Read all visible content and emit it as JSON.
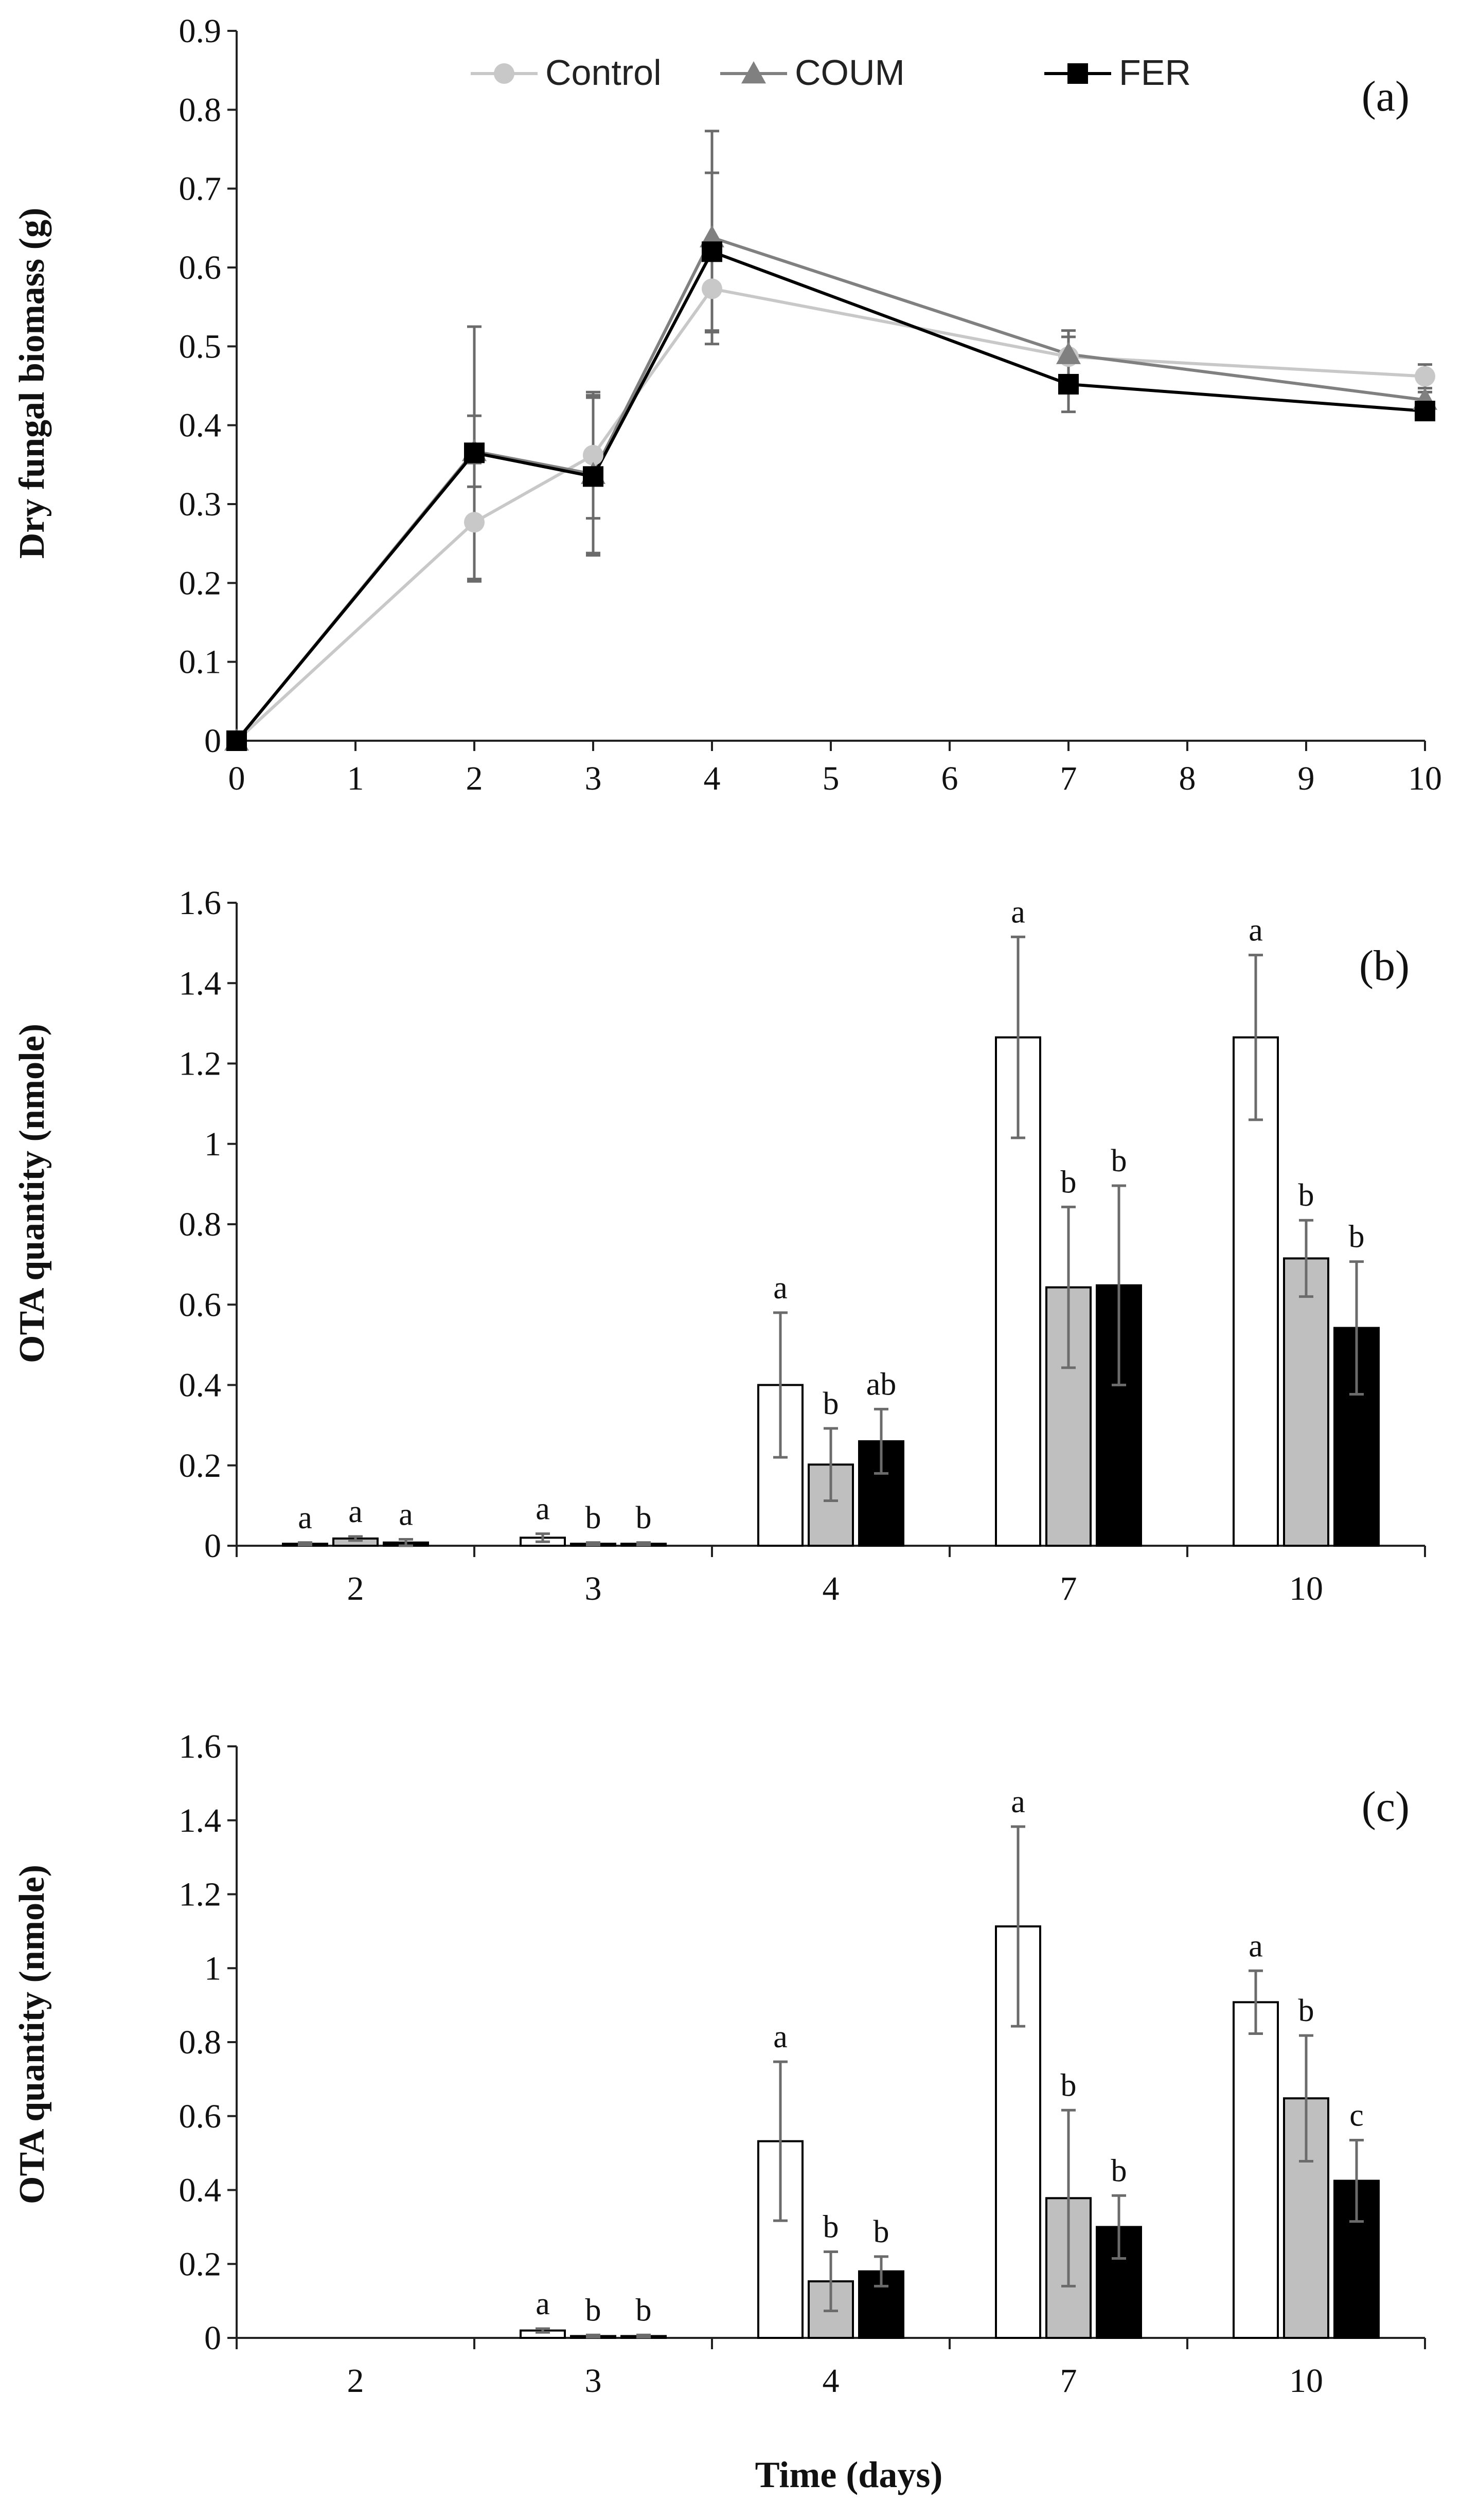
{
  "colors": {
    "control_line": "#c8c8c8",
    "coum_line": "#808080",
    "fer_line": "#000000",
    "control_bar": "#ffffff",
    "coum_bar": "#bfbfbf",
    "fer_bar": "#000000",
    "error": "#6b6b6b"
  },
  "chart_data": [
    {
      "id": "a",
      "type": "line",
      "panel_label": "(a)",
      "ylabel": "Dry fungal biomass (g)",
      "xlabel": "",
      "xlim": [
        0,
        10
      ],
      "ylim": [
        0,
        0.9
      ],
      "xticks": [
        "0",
        "1",
        "2",
        "3",
        "4",
        "5",
        "6",
        "7",
        "8",
        "9",
        "10"
      ],
      "yticks": [
        "0",
        "0.1",
        "0.2",
        "0.3",
        "0.4",
        "0.5",
        "0.6",
        "0.7",
        "0.8",
        "0.9"
      ],
      "legend_position": "top-center",
      "x": [
        0,
        2,
        3,
        4,
        7,
        10
      ],
      "series": [
        {
          "name": "Control",
          "marker": "circle",
          "values": [
            0,
            0.277,
            0.362,
            0.573,
            0.487,
            0.462
          ],
          "errors": [
            0,
            0.075,
            0.08,
            0.055,
            0.025,
            0.015
          ]
        },
        {
          "name": "COUM",
          "marker": "triangle",
          "values": [
            0,
            0.367,
            0.338,
            0.638,
            0.49,
            0.432
          ],
          "errors": [
            0,
            0.045,
            0.1,
            0.135,
            0.03,
            0.01
          ]
        },
        {
          "name": "FER",
          "marker": "square",
          "values": [
            0,
            0.365,
            0.335,
            0.62,
            0.452,
            0.418
          ],
          "errors": [
            0,
            0.16,
            0.1,
            0.1,
            0.035,
            0.01
          ]
        }
      ]
    },
    {
      "id": "b",
      "type": "bar",
      "panel_label": "(b)",
      "ylabel": "OTA quantity (nmole)",
      "xlabel": "",
      "ylim": [
        0,
        1.6
      ],
      "yticks": [
        "0",
        "0.2",
        "0.4",
        "0.6",
        "0.8",
        "1",
        "1.2",
        "1.4",
        "1.6"
      ],
      "categories": [
        "2",
        "3",
        "4",
        "7",
        "10"
      ],
      "series": [
        {
          "name": "Control",
          "values": [
            0.005,
            0.02,
            0.4,
            1.265,
            1.265
          ],
          "errors": [
            0.003,
            0.01,
            0.18,
            0.25,
            0.205
          ],
          "letters": [
            "a",
            "a",
            "a",
            "a",
            "a"
          ]
        },
        {
          "name": "COUM",
          "values": [
            0.018,
            0.005,
            0.202,
            0.643,
            0.715
          ],
          "errors": [
            0.005,
            0.003,
            0.09,
            0.2,
            0.095
          ],
          "letters": [
            "a",
            "b",
            "b",
            "b",
            "b"
          ]
        },
        {
          "name": "FER",
          "values": [
            0.008,
            0.005,
            0.26,
            0.648,
            0.542
          ],
          "errors": [
            0.008,
            0.003,
            0.08,
            0.248,
            0.165
          ],
          "letters": [
            "a",
            "b",
            "ab",
            "b",
            "b"
          ]
        }
      ]
    },
    {
      "id": "c",
      "type": "bar",
      "panel_label": "(c)",
      "ylabel": "OTA quantity (nmole)",
      "xlabel": "Time (days)",
      "ylim": [
        0,
        1.6
      ],
      "yticks": [
        "0",
        "0.2",
        "0.4",
        "0.6",
        "0.8",
        "1",
        "1.2",
        "1.4",
        "1.6"
      ],
      "categories": [
        "2",
        "3",
        "4",
        "7",
        "10"
      ],
      "series": [
        {
          "name": "Control",
          "values": [
            0,
            0.02,
            0.532,
            1.113,
            0.908
          ],
          "errors": [
            0,
            0.005,
            0.215,
            0.27,
            0.085
          ],
          "letters": [
            "",
            "a",
            "a",
            "a",
            "a"
          ]
        },
        {
          "name": "COUM",
          "values": [
            0,
            0.005,
            0.153,
            0.378,
            0.648
          ],
          "errors": [
            0,
            0.003,
            0.08,
            0.238,
            0.17
          ],
          "letters": [
            "",
            "b",
            "b",
            "b",
            "b"
          ]
        },
        {
          "name": "FER",
          "values": [
            0,
            0.005,
            0.18,
            0.3,
            0.425
          ],
          "errors": [
            0,
            0.003,
            0.04,
            0.085,
            0.11
          ],
          "letters": [
            "",
            "b",
            "b",
            "b",
            "c"
          ]
        }
      ]
    }
  ]
}
